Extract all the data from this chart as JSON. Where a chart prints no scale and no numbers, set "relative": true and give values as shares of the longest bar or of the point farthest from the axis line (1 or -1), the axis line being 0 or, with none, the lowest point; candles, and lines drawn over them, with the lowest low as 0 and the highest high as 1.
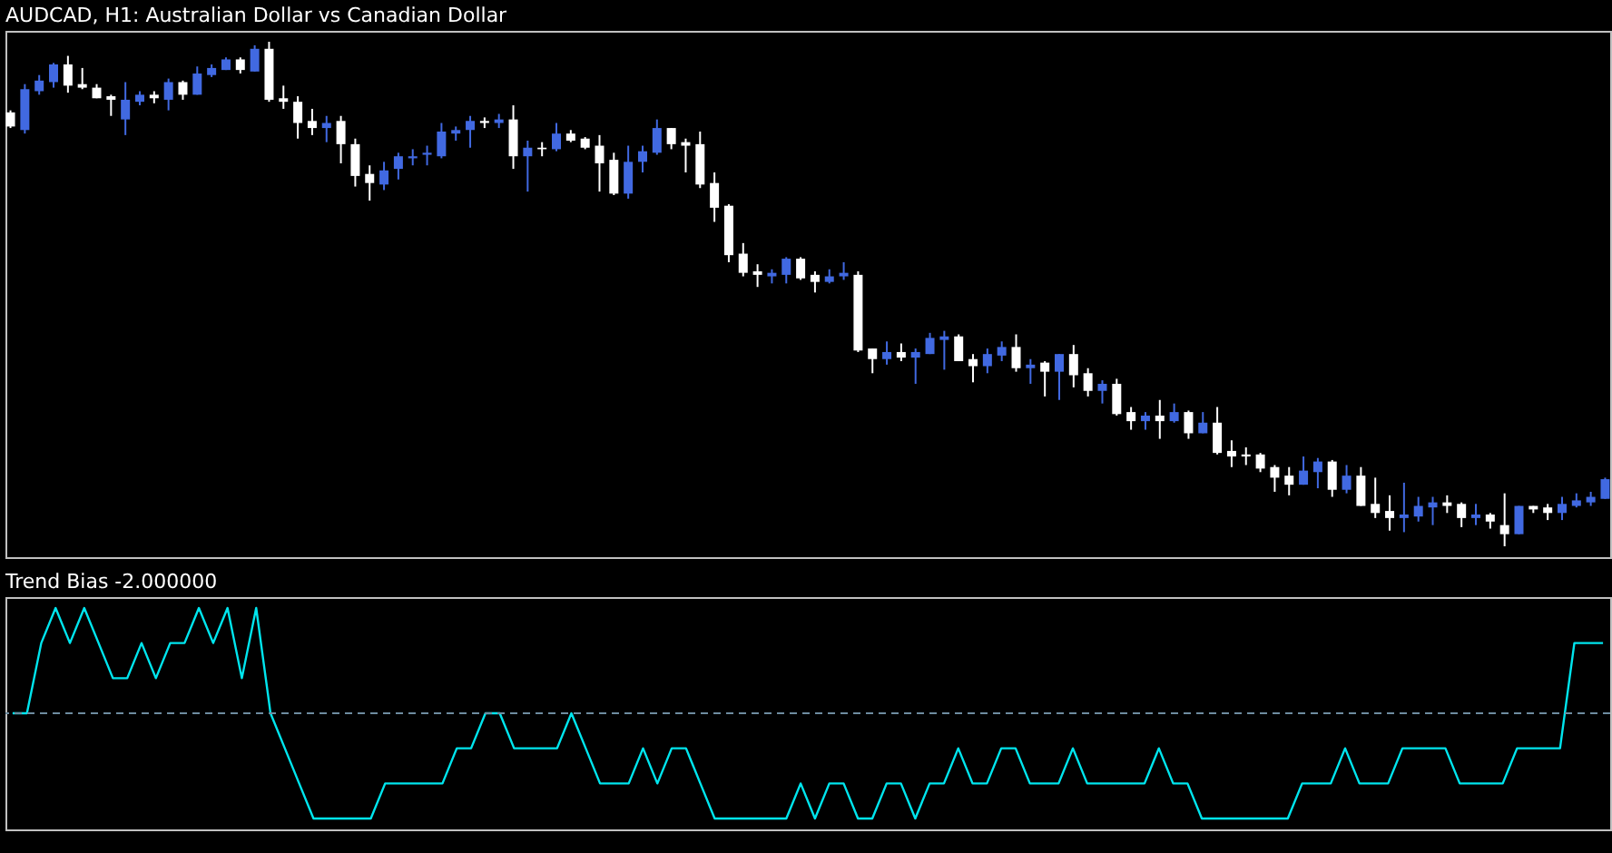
{
  "chart_data": [
    {
      "type": "candlestick",
      "title": "AUDCAD, H1:  Australian Dollar vs Canadian Dollar",
      "relative": true,
      "tick_labels": false,
      "colors": [
        "#ffffff",
        "#4169e1",
        "#4169e1",
        "#4169e1",
        "#ffffff",
        "#ffffff",
        "#ffffff",
        "#ffffff",
        "#4169e1",
        "#4169e1",
        "#ffffff",
        "#4169e1",
        "#ffffff",
        "#4169e1",
        "#4169e1",
        "#4169e1",
        "#ffffff",
        "#4169e1",
        "#ffffff",
        "#ffffff",
        "#ffffff",
        "#ffffff",
        "#4169e1",
        "#ffffff",
        "#ffffff",
        "#ffffff",
        "#4169e1",
        "#4169e1",
        "#4169e1",
        "#4169e1",
        "#4169e1",
        "#4169e1",
        "#4169e1",
        "#ffffff",
        "#4169e1",
        "#ffffff",
        "#4169e1",
        "#ffffff",
        "#4169e1",
        "#ffffff",
        "#ffffff",
        "#ffffff",
        "#ffffff",
        "#4169e1",
        "#4169e1",
        "#4169e1",
        "#ffffff",
        "#ffffff",
        "#ffffff",
        "#ffffff",
        "#ffffff",
        "#ffffff",
        "#ffffff",
        "#4169e1",
        "#4169e1",
        "#ffffff",
        "#ffffff",
        "#4169e1",
        "#4169e1",
        "#ffffff",
        "#ffffff",
        "#4169e1",
        "#ffffff",
        "#4169e1",
        "#4169e1",
        "#4169e1",
        "#ffffff",
        "#ffffff",
        "#4169e1",
        "#4169e1",
        "#ffffff",
        "#4169e1",
        "#ffffff",
        "#4169e1",
        "#ffffff",
        "#ffffff",
        "#4169e1",
        "#ffffff",
        "#ffffff",
        "#4169e1",
        "#ffffff",
        "#4169e1",
        "#ffffff",
        "#4169e1",
        "#ffffff",
        "#ffffff",
        "#ffffff",
        "#ffffff",
        "#ffffff",
        "#ffffff",
        "#4169e1",
        "#4169e1",
        "#ffffff",
        "#4169e1",
        "#ffffff",
        "#ffffff",
        "#ffffff",
        "#4169e1",
        "#4169e1",
        "#4169e1",
        "#ffffff",
        "#ffffff",
        "#4169e1",
        "#ffffff",
        "#ffffff",
        "#4169e1",
        "#ffffff",
        "#ffffff",
        "#4169e1",
        "#4169e1",
        "#4169e1",
        "#4169e1"
      ],
      "categories": [
        null,
        null,
        null,
        null,
        null,
        null,
        null,
        null,
        null,
        null,
        null,
        null,
        null,
        null,
        null,
        null,
        null,
        null,
        null,
        null,
        null,
        null,
        null,
        null,
        null,
        null,
        null,
        null,
        null,
        null,
        null,
        null,
        null,
        null,
        null,
        null,
        null,
        null,
        null,
        null,
        null,
        null,
        null,
        null,
        null,
        null,
        null,
        null,
        null,
        null,
        null,
        null,
        null,
        null,
        null,
        null,
        null,
        null,
        null,
        null,
        null,
        null,
        null,
        null,
        null,
        null,
        null,
        null,
        null,
        null,
        null,
        null,
        null,
        null,
        null,
        null,
        null,
        null,
        null,
        null,
        null,
        null,
        null,
        null,
        null,
        null,
        null,
        null,
        null,
        null,
        null,
        null,
        null,
        null,
        null,
        null,
        null,
        null,
        null,
        null,
        null,
        null,
        null,
        null,
        null,
        null,
        null,
        null,
        null,
        null,
        null,
        null
      ],
      "ohlc": [
        [
          0.86,
          0.864,
          0.829,
          0.832
        ],
        [
          0.825,
          0.916,
          0.818,
          0.906
        ],
        [
          0.902,
          0.934,
          0.895,
          0.923
        ],
        [
          0.92,
          0.958,
          0.909,
          0.955
        ],
        [
          0.955,
          0.972,
          0.899,
          0.913
        ],
        [
          0.916,
          0.948,
          0.906,
          0.909
        ],
        [
          0.909,
          0.916,
          0.888,
          0.888
        ],
        [
          0.892,
          0.895,
          0.853,
          0.885
        ],
        [
          0.846,
          0.92,
          0.815,
          0.885
        ],
        [
          0.881,
          0.902,
          0.874,
          0.895
        ],
        [
          0.895,
          0.902,
          0.878,
          0.888
        ],
        [
          0.885,
          0.927,
          0.864,
          0.92
        ],
        [
          0.92,
          0.923,
          0.885,
          0.895
        ],
        [
          0.895,
          0.951,
          0.895,
          0.937
        ],
        [
          0.934,
          0.955,
          0.93,
          0.948
        ],
        [
          0.944,
          0.969,
          0.944,
          0.965
        ],
        [
          0.965,
          0.969,
          0.937,
          0.944
        ],
        [
          0.941,
          0.993,
          0.941,
          0.986
        ],
        [
          0.986,
          1,
          0.881,
          0.885
        ],
        [
          0.888,
          0.913,
          0.867,
          0.881
        ],
        [
          0.881,
          0.892,
          0.808,
          0.839
        ],
        [
          0.843,
          0.867,
          0.815,
          0.829
        ],
        [
          0.829,
          0.853,
          0.801,
          0.839
        ],
        [
          0.843,
          0.853,
          0.759,
          0.797
        ],
        [
          0.797,
          0.808,
          0.713,
          0.734
        ],
        [
          0.738,
          0.755,
          0.685,
          0.72
        ],
        [
          0.717,
          0.762,
          0.706,
          0.745
        ],
        [
          0.748,
          0.78,
          0.727,
          0.773
        ],
        [
          0.769,
          0.787,
          0.755,
          0.773
        ],
        [
          0.776,
          0.794,
          0.755,
          0.78
        ],
        [
          0.773,
          0.839,
          0.769,
          0.822
        ],
        [
          0.818,
          0.832,
          0.804,
          0.825
        ],
        [
          0.825,
          0.853,
          0.79,
          0.843
        ],
        [
          0.843,
          0.85,
          0.829,
          0.839
        ],
        [
          0.839,
          0.857,
          0.829,
          0.846
        ],
        [
          0.846,
          0.874,
          0.748,
          0.773
        ],
        [
          0.773,
          0.804,
          0.703,
          0.79
        ],
        [
          0.79,
          0.801,
          0.773,
          0.787
        ],
        [
          0.787,
          0.839,
          0.783,
          0.818
        ],
        [
          0.818,
          0.825,
          0.801,
          0.804
        ],
        [
          0.808,
          0.811,
          0.787,
          0.79
        ],
        [
          0.794,
          0.815,
          0.703,
          0.759
        ],
        [
          0.766,
          0.78,
          0.696,
          0.699
        ],
        [
          0.699,
          0.794,
          0.689,
          0.762
        ],
        [
          0.762,
          0.794,
          0.741,
          0.783
        ],
        [
          0.78,
          0.846,
          0.776,
          0.829
        ],
        [
          0.829,
          0.829,
          0.787,
          0.797
        ],
        [
          0.801,
          0.808,
          0.741,
          0.794
        ],
        [
          0.797,
          0.822,
          0.71,
          0.717
        ],
        [
          0.72,
          0.741,
          0.643,
          0.671
        ],
        [
          0.675,
          0.678,
          0.563,
          0.577
        ],
        [
          0.58,
          0.601,
          0.535,
          0.542
        ],
        [
          0.545,
          0.559,
          0.514,
          0.538
        ],
        [
          0.535,
          0.549,
          0.521,
          0.542
        ],
        [
          0.538,
          0.573,
          0.521,
          0.57
        ],
        [
          0.57,
          0.573,
          0.528,
          0.531
        ],
        [
          0.538,
          0.545,
          0.503,
          0.524
        ],
        [
          0.524,
          0.549,
          0.521,
          0.535
        ],
        [
          0.535,
          0.563,
          0.528,
          0.542
        ],
        [
          0.538,
          0.545,
          0.385,
          0.388
        ],
        [
          0.392,
          0.392,
          0.343,
          0.371
        ],
        [
          0.371,
          0.406,
          0.36,
          0.385
        ],
        [
          0.385,
          0.402,
          0.367,
          0.374
        ],
        [
          0.374,
          0.392,
          0.322,
          0.385
        ],
        [
          0.381,
          0.423,
          0.381,
          0.413
        ],
        [
          0.409,
          0.427,
          0.35,
          0.416
        ],
        [
          0.416,
          0.42,
          0.367,
          0.367
        ],
        [
          0.371,
          0.381,
          0.325,
          0.357
        ],
        [
          0.357,
          0.392,
          0.343,
          0.381
        ],
        [
          0.378,
          0.406,
          0.367,
          0.395
        ],
        [
          0.395,
          0.42,
          0.346,
          0.353
        ],
        [
          0.353,
          0.371,
          0.322,
          0.36
        ],
        [
          0.364,
          0.367,
          0.297,
          0.346
        ],
        [
          0.346,
          0.381,
          0.29,
          0.381
        ],
        [
          0.381,
          0.399,
          0.315,
          0.339
        ],
        [
          0.343,
          0.353,
          0.297,
          0.308
        ],
        [
          0.308,
          0.329,
          0.283,
          0.322
        ],
        [
          0.322,
          0.332,
          0.259,
          0.262
        ],
        [
          0.266,
          0.276,
          0.231,
          0.248
        ],
        [
          0.248,
          0.266,
          0.231,
          0.259
        ],
        [
          0.259,
          0.29,
          0.213,
          0.248
        ],
        [
          0.248,
          0.283,
          0.245,
          0.266
        ],
        [
          0.266,
          0.269,
          0.213,
          0.224
        ],
        [
          0.224,
          0.266,
          0.224,
          0.245
        ],
        [
          0.245,
          0.276,
          0.182,
          0.185
        ],
        [
          0.189,
          0.21,
          0.157,
          0.178
        ],
        [
          0.182,
          0.196,
          0.161,
          0.178
        ],
        [
          0.182,
          0.185,
          0.147,
          0.154
        ],
        [
          0.157,
          0.161,
          0.108,
          0.136
        ],
        [
          0.14,
          0.157,
          0.101,
          0.122
        ],
        [
          0.122,
          0.178,
          0.122,
          0.15
        ],
        [
          0.147,
          0.175,
          0.115,
          0.168
        ],
        [
          0.168,
          0.171,
          0.098,
          0.112
        ],
        [
          0.112,
          0.161,
          0.105,
          0.14
        ],
        [
          0.14,
          0.157,
          0.08,
          0.08
        ],
        [
          0.084,
          0.136,
          0.056,
          0.066
        ],
        [
          0.07,
          0.101,
          0.031,
          0.056
        ],
        [
          0.056,
          0.126,
          0.028,
          0.063
        ],
        [
          0.059,
          0.098,
          0.049,
          0.08
        ],
        [
          0.077,
          0.098,
          0.042,
          0.087
        ],
        [
          0.087,
          0.101,
          0.066,
          0.08
        ],
        [
          0.084,
          0.087,
          0.038,
          0.056
        ],
        [
          0.056,
          0.084,
          0.042,
          0.063
        ],
        [
          0.063,
          0.066,
          0.035,
          0.049
        ],
        [
          0.042,
          0.105,
          0,
          0.024
        ],
        [
          0.024,
          0.08,
          0.024,
          0.08
        ],
        [
          0.08,
          0.08,
          0.066,
          0.073
        ],
        [
          0.077,
          0.084,
          0.052,
          0.066
        ],
        [
          0.066,
          0.098,
          0.052,
          0.084
        ],
        [
          0.08,
          0.105,
          0.077,
          0.091
        ],
        [
          0.087,
          0.108,
          0.08,
          0.098
        ],
        [
          0.094,
          0.136,
          0.094,
          0.133
        ]
      ]
    },
    {
      "type": "line",
      "title": "Trend Bias -2.000000",
      "relative": true,
      "tick_labels": false,
      "categories": [
        null,
        null,
        null,
        null,
        null,
        null,
        null,
        null,
        null,
        null,
        null,
        null,
        null,
        null,
        null,
        null,
        null,
        null,
        null,
        null,
        null,
        null,
        null,
        null,
        null,
        null,
        null,
        null,
        null,
        null,
        null,
        null,
        null,
        null,
        null,
        null,
        null,
        null,
        null,
        null,
        null,
        null,
        null,
        null,
        null,
        null,
        null,
        null,
        null,
        null,
        null,
        null,
        null,
        null,
        null,
        null,
        null,
        null,
        null,
        null,
        null,
        null,
        null,
        null,
        null,
        null,
        null,
        null,
        null,
        null,
        null,
        null,
        null,
        null,
        null,
        null,
        null,
        null,
        null,
        null,
        null,
        null,
        null,
        null,
        null,
        null,
        null,
        null,
        null,
        null,
        null,
        null,
        null,
        null,
        null,
        null,
        null,
        null,
        null,
        null,
        null,
        null,
        null,
        null,
        null,
        null,
        null,
        null,
        null,
        null,
        null,
        null
      ],
      "series": [
        {
          "color": "#00e5ee",
          "values": [
            0,
            0,
            0.667,
            1,
            0.667,
            1,
            0.667,
            0.333,
            0.333,
            0.667,
            0.333,
            0.667,
            0.667,
            1,
            0.667,
            1,
            0.333,
            1,
            0,
            -0.333,
            -0.667,
            -1,
            -1,
            -1,
            -1,
            -1,
            -0.667,
            -0.667,
            -0.667,
            -0.667,
            -0.667,
            -0.333,
            -0.333,
            0,
            0,
            -0.333,
            -0.333,
            -0.333,
            -0.333,
            0,
            -0.333,
            -0.667,
            -0.667,
            -0.667,
            -0.333,
            -0.667,
            -0.333,
            -0.333,
            -0.667,
            -1,
            -1,
            -1,
            -1,
            -1,
            -1,
            -0.667,
            -1,
            -0.667,
            -0.667,
            -1,
            -1,
            -0.667,
            -0.667,
            -1,
            -0.667,
            -0.667,
            -0.333,
            -0.667,
            -0.667,
            -0.333,
            -0.333,
            -0.667,
            -0.667,
            -0.667,
            -0.333,
            -0.667,
            -0.667,
            -0.667,
            -0.667,
            -0.667,
            -0.333,
            -0.667,
            -0.667,
            -1,
            -1,
            -1,
            -1,
            -1,
            -1,
            -1,
            -0.667,
            -0.667,
            -0.667,
            -0.333,
            -0.667,
            -0.667,
            -0.667,
            -0.333,
            -0.333,
            -0.333,
            -0.333,
            -0.667,
            -0.667,
            -0.667,
            -0.667,
            -0.333,
            -0.333,
            -0.333,
            -0.333,
            0.667,
            0.667,
            0.667
          ]
        }
      ],
      "ref_lines": [
        {
          "axis": "y",
          "value": 0,
          "color": "#6e8ca0",
          "line_style": "dashed"
        }
      ]
    }
  ]
}
